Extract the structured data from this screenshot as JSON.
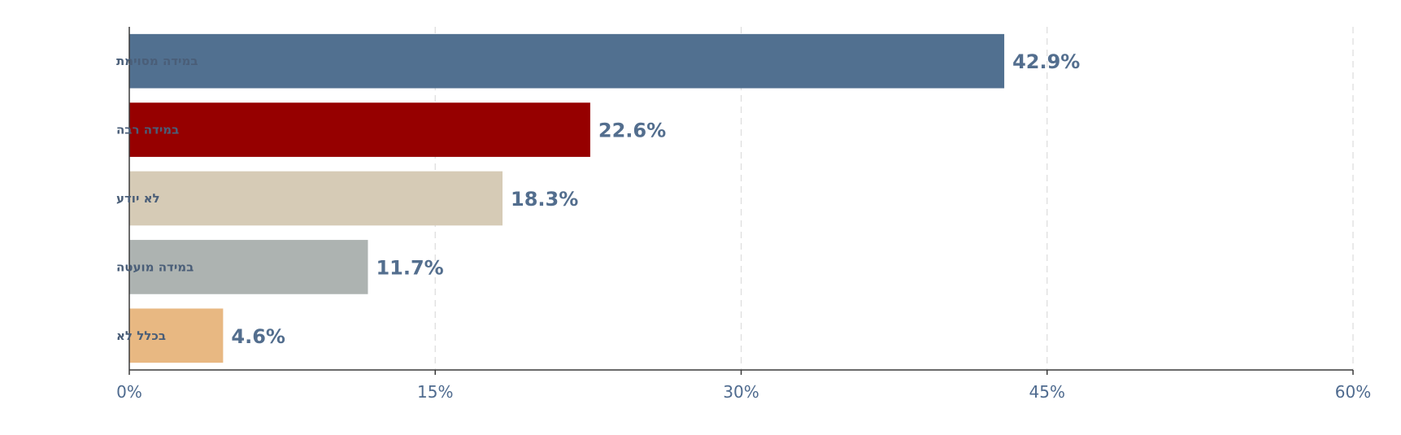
{
  "chart_data": {
    "type": "bar",
    "orientation": "horizontal",
    "categories": [
      "במידה מסוימת",
      "במידה רבה",
      "לא יודע",
      "במידה מועטה",
      "בכלל לא"
    ],
    "values": [
      42.9,
      22.6,
      18.3,
      11.7,
      4.6
    ],
    "value_labels": [
      "42.9%",
      "22.6%",
      "18.3%",
      "11.7%",
      "4.6%"
    ],
    "colors": [
      "#517090",
      "#960000",
      "#d6cbb6",
      "#adb3b1",
      "#e8b882"
    ],
    "title": "",
    "xlabel": "",
    "ylabel": "",
    "xlim": [
      0,
      60
    ],
    "x_ticks": [
      0,
      15,
      30,
      45,
      60
    ],
    "x_tick_labels": [
      "0%",
      "15%",
      "30%",
      "45%",
      "60%"
    ],
    "grid": "vertical dashed",
    "legend": "none"
  }
}
